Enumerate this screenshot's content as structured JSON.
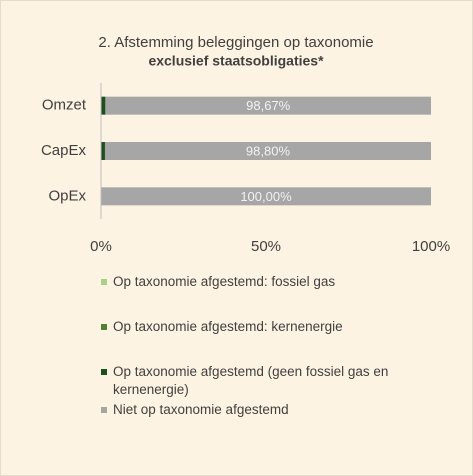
{
  "chart_data": {
    "type": "stacked-bar-horizontal",
    "title": "2. Afstemming beleggingen op taxonomie",
    "subtitle": "exclusief staatsobligaties*",
    "categories": [
      "Omzet",
      "CapEx",
      "OpEx"
    ],
    "series": [
      {
        "name": "Op taxonomie afgestemd: fossiel gas",
        "color": "#a9d18e",
        "values": [
          0,
          0,
          0
        ]
      },
      {
        "name": "Op taxonomie afgestemd: kernenergie",
        "color": "#548235",
        "values": [
          0,
          0,
          0
        ]
      },
      {
        "name": "Op taxonomie afgestemd (geen fossiel gas en kernenergie)",
        "color": "#1f4e1f",
        "values": [
          1.33,
          1.2,
          0
        ],
        "value_labels": [
          "1,33%",
          "1,20%",
          "0,00%"
        ]
      },
      {
        "name": "Niet op taxonomie afgestemd",
        "color": "#a6a6a6",
        "values": [
          98.67,
          98.8,
          100
        ],
        "value_labels": [
          "98,67%",
          "98,80%",
          "100,00%"
        ]
      }
    ],
    "xlim": [
      0,
      100
    ],
    "xticks": [
      {
        "value": 0,
        "label": "0%"
      },
      {
        "value": 50,
        "label": "50%"
      },
      {
        "value": 100,
        "label": "100%"
      }
    ]
  }
}
